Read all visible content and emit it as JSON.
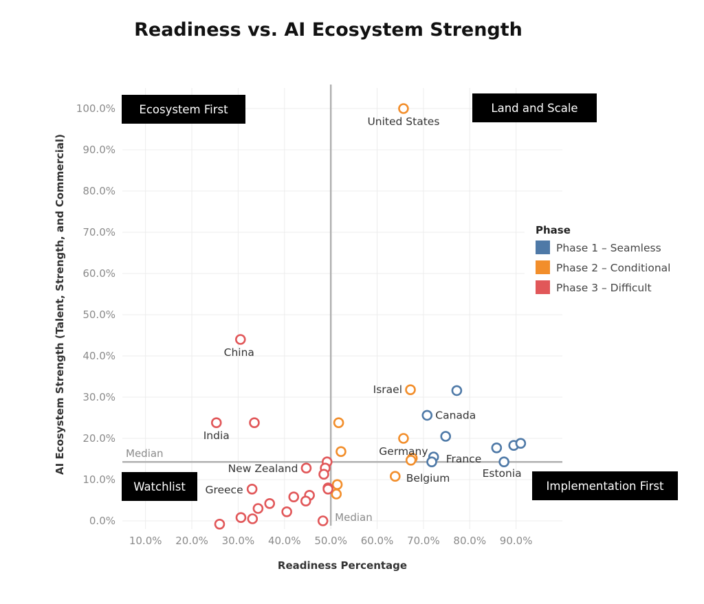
{
  "chart_data": {
    "type": "scatter",
    "title": "Readiness vs. AI Ecosystem Strength",
    "xlabel": "Readiness Percentage",
    "ylabel": "AI Ecosystem Strength (Talent, Strength, and Commercial)",
    "xlim": [
      0.05,
      1.0
    ],
    "ylim": [
      -0.02,
      1.05
    ],
    "x_ticks": [
      0.1,
      0.2,
      0.3,
      0.4,
      0.5,
      0.6,
      0.7,
      0.8,
      0.9
    ],
    "x_tick_labels": [
      "10.0%",
      "20.0%",
      "30.0%",
      "40.0%",
      "50.0%",
      "60.0%",
      "70.0%",
      "80.0%",
      "90.0%"
    ],
    "y_ticks": [
      0.0,
      0.1,
      0.2,
      0.3,
      0.4,
      0.5,
      0.6,
      0.7,
      0.8,
      0.9,
      1.0
    ],
    "y_tick_labels": [
      "0.0%",
      "10.0%",
      "20.0%",
      "30.0%",
      "40.0%",
      "50.0%",
      "60.0%",
      "70.0%",
      "80.0%",
      "90.0%",
      "100.0%"
    ],
    "grid": true,
    "legend_position": "right",
    "medians": {
      "x": 0.5,
      "y": 0.143,
      "x_label": "Median",
      "y_label": "Median"
    },
    "quadrants": {
      "top_left": "Ecosystem First",
      "top_right": "Land and Scale",
      "bottom_left": "Watchlist",
      "bottom_right": "Implementation First"
    },
    "legend_title": "Phase",
    "series": [
      {
        "name": "Phase 1 – Seamless",
        "color": "#4e79a7",
        "points": [
          {
            "x": 0.772,
            "y": 0.316,
            "label": ""
          },
          {
            "x": 0.708,
            "y": 0.256,
            "label": "Canada"
          },
          {
            "x": 0.748,
            "y": 0.205,
            "label": ""
          },
          {
            "x": 0.722,
            "y": 0.155,
            "label": "France"
          },
          {
            "x": 0.718,
            "y": 0.143,
            "label": ""
          },
          {
            "x": 0.858,
            "y": 0.177,
            "label": ""
          },
          {
            "x": 0.895,
            "y": 0.183,
            "label": ""
          },
          {
            "x": 0.91,
            "y": 0.188,
            "label": ""
          },
          {
            "x": 0.874,
            "y": 0.143,
            "label": "Estonia"
          }
        ]
      },
      {
        "name": "Phase 2 – Conditional",
        "color": "#f28e2b",
        "points": [
          {
            "x": 0.657,
            "y": 1.0,
            "label": "United States"
          },
          {
            "x": 0.672,
            "y": 0.318,
            "label": "Israel"
          },
          {
            "x": 0.517,
            "y": 0.238,
            "label": ""
          },
          {
            "x": 0.657,
            "y": 0.2,
            "label": "Germany"
          },
          {
            "x": 0.522,
            "y": 0.168,
            "label": ""
          },
          {
            "x": 0.676,
            "y": 0.152,
            "label": ""
          },
          {
            "x": 0.673,
            "y": 0.147,
            "label": ""
          },
          {
            "x": 0.639,
            "y": 0.108,
            "label": "Belgium"
          },
          {
            "x": 0.514,
            "y": 0.088,
            "label": ""
          },
          {
            "x": 0.512,
            "y": 0.065,
            "label": ""
          }
        ]
      },
      {
        "name": "Phase 3 – Difficult",
        "color": "#e15759",
        "points": [
          {
            "x": 0.305,
            "y": 0.44,
            "label": "China"
          },
          {
            "x": 0.253,
            "y": 0.238,
            "label": "India"
          },
          {
            "x": 0.335,
            "y": 0.238,
            "label": ""
          },
          {
            "x": 0.492,
            "y": 0.143,
            "label": ""
          },
          {
            "x": 0.488,
            "y": 0.128,
            "label": ""
          },
          {
            "x": 0.447,
            "y": 0.128,
            "label": "New Zealand"
          },
          {
            "x": 0.485,
            "y": 0.113,
            "label": ""
          },
          {
            "x": 0.494,
            "y": 0.08,
            "label": ""
          },
          {
            "x": 0.494,
            "y": 0.077,
            "label": ""
          },
          {
            "x": 0.33,
            "y": 0.077,
            "label": "Greece"
          },
          {
            "x": 0.454,
            "y": 0.062,
            "label": ""
          },
          {
            "x": 0.42,
            "y": 0.058,
            "label": ""
          },
          {
            "x": 0.446,
            "y": 0.048,
            "label": ""
          },
          {
            "x": 0.368,
            "y": 0.042,
            "label": ""
          },
          {
            "x": 0.343,
            "y": 0.03,
            "label": ""
          },
          {
            "x": 0.405,
            "y": 0.022,
            "label": ""
          },
          {
            "x": 0.306,
            "y": 0.008,
            "label": ""
          },
          {
            "x": 0.331,
            "y": 0.005,
            "label": ""
          },
          {
            "x": 0.483,
            "y": 0.0,
            "label": ""
          },
          {
            "x": 0.26,
            "y": -0.008,
            "label": ""
          }
        ]
      }
    ]
  }
}
